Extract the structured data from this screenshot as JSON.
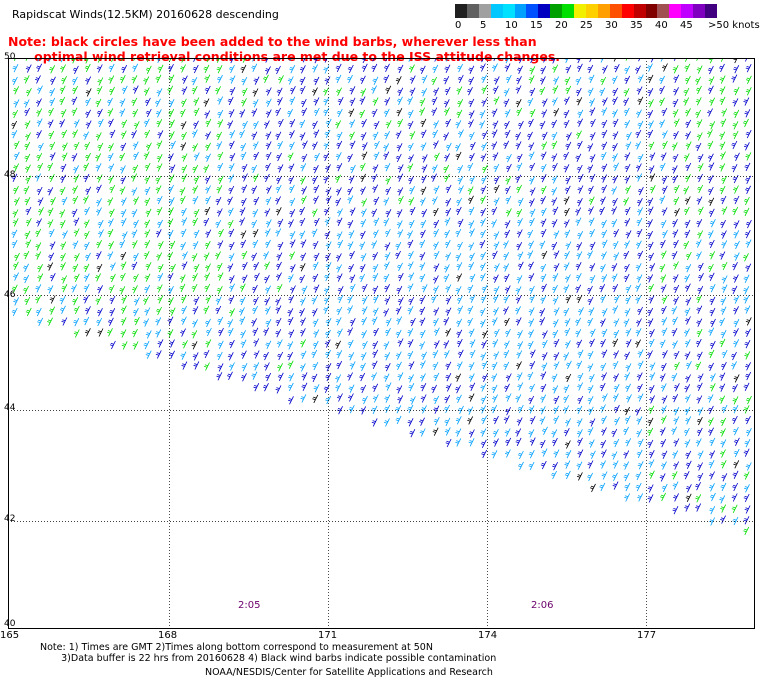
{
  "title": "Rapidscat Winds(12.5KM) 20160628 descending",
  "note_line1": "Note: black circles have been added to the wind barbs, wherever less than",
  "note_line2": "      optimal wind retrieval conditions are met due to the ISS attitude changes.",
  "legend": {
    "labels": [
      "0",
      "5",
      "10",
      "15",
      "20",
      "25",
      "30",
      "35",
      "40",
      "45",
      ">50 knots"
    ],
    "colors": [
      "#202020",
      "#606060",
      "#a0a0a0",
      "#00c8ff",
      "#00e0ff",
      "#00a0ff",
      "#0050ff",
      "#0000c0",
      "#00a000",
      "#00e000",
      "#f0f000",
      "#ffd000",
      "#ffa000",
      "#ff5000",
      "#ff0000",
      "#c00000",
      "#800000",
      "#a05050",
      "#ff00ff",
      "#c000ff",
      "#8000c0",
      "#400080"
    ]
  },
  "chart_data": {
    "type": "map",
    "lat_ticks": [
      "50",
      "48",
      "46",
      "44",
      "42",
      "40"
    ],
    "lon_ticks": [
      "165",
      "168",
      "171",
      "174",
      "177"
    ],
    "times": [
      "2:05",
      "2:06"
    ],
    "barb_color_by_speed": {
      "10": "#0000cc",
      "15": "#00a0ff",
      "20": "#00dd00"
    }
  },
  "footnote_line1": "Note: 1) Times are GMT 2)Times along bottom correspond to measurement at 50N",
  "footnote_line2": "       3)Data buffer is 22 hrs from 20160628 4) Black wind barbs indicate possible contamination",
  "credit": "NOAA/NESDIS/Center for Satellite Applications and Research"
}
